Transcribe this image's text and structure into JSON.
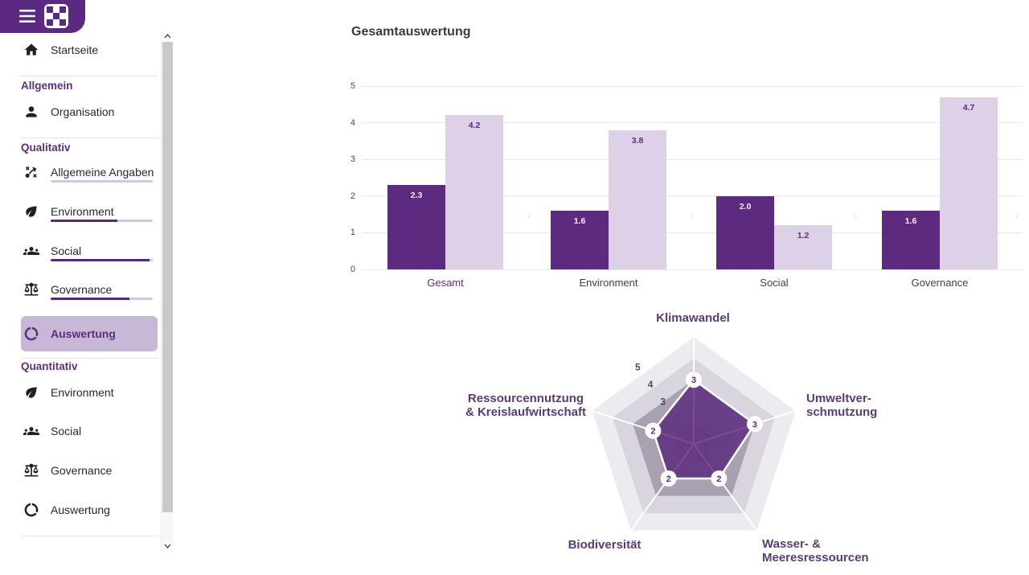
{
  "header": {
    "brand_color": "#5b2a80",
    "menu_icon": "hamburger-icon",
    "logo_icon": "checkerboard-logo"
  },
  "main": {
    "title": "Gesamtauswertung"
  },
  "sidebar": {
    "entries": [
      {
        "type": "item",
        "label": "Startseite",
        "icon": "home-icon"
      },
      {
        "type": "divider"
      },
      {
        "type": "section",
        "label": "Allgemein"
      },
      {
        "type": "item",
        "label": "Organisation",
        "icon": "person-icon"
      },
      {
        "type": "divider"
      },
      {
        "type": "section",
        "label": "Qualitativ"
      },
      {
        "type": "item",
        "label": "Allgemeine Angaben",
        "icon": "strategy-icon",
        "progress_percent": 0
      },
      {
        "type": "item",
        "label": "Environment",
        "icon": "leaf-icon",
        "progress_percent": 65
      },
      {
        "type": "item",
        "label": "Social",
        "icon": "people-icon",
        "progress_percent": 97
      },
      {
        "type": "item",
        "label": "Governance",
        "icon": "scales-icon",
        "progress_percent": 77
      },
      {
        "type": "item",
        "label": "Auswertung",
        "icon": "donut-icon",
        "active": true
      },
      {
        "type": "divider"
      },
      {
        "type": "section",
        "label": "Quantitativ"
      },
      {
        "type": "item",
        "label": "Environment",
        "icon": "leaf-icon"
      },
      {
        "type": "item",
        "label": "Social",
        "icon": "people-icon"
      },
      {
        "type": "item",
        "label": "Governance",
        "icon": "scales-icon"
      },
      {
        "type": "item",
        "label": "Auswertung",
        "icon": "donut-icon"
      },
      {
        "type": "divider"
      }
    ]
  },
  "colors": {
    "accent_purple": "#5c2d7e",
    "dark_bar": "#5c2b80",
    "light_bar": "#dcd1e6",
    "active_item_bg": "#c7b8d5",
    "radar_fill": "#5e2e80",
    "radar_label": "#5a3b78"
  },
  "chart_data": [
    {
      "type": "bar",
      "title": "Gesamtauswertung",
      "categories": [
        "Gesamt",
        "Environment",
        "Social",
        "Governance"
      ],
      "highlighted_category": "Gesamt",
      "series": [
        {
          "color": "#5c2b80",
          "values": [
            2.3,
            1.6,
            2.0,
            1.6
          ],
          "labels": [
            "2.3",
            "1.6",
            "2.0",
            "1.6"
          ]
        },
        {
          "color": "#dcd1e6",
          "values": [
            4.2,
            3.8,
            1.2,
            4.7
          ],
          "labels": [
            "4.2",
            "3.8",
            "1.2",
            "4.7"
          ]
        }
      ],
      "ylim": [
        0,
        5
      ],
      "yticks": [
        "0",
        "1",
        "2",
        "3",
        "4",
        "5"
      ],
      "grid": true,
      "legend": "none"
    },
    {
      "type": "radar",
      "categories": [
        "Klimawandel",
        "Umweltverschmutzung",
        "Wasser- & Meeresressourcen",
        "Biodiversität",
        "Ressourcennutzung & Kreislaufwirtschaft"
      ],
      "category_label_lines": [
        [
          "Klimawandel"
        ],
        [
          "Umweltver-",
          "schmutzung"
        ],
        [
          "Wasser- &",
          "Meeresressourcen"
        ],
        [
          "Biodiversität"
        ],
        [
          "Ressourcennutzung",
          "& Kreislaufwirtschaft"
        ]
      ],
      "values": [
        3,
        3,
        2,
        2,
        2
      ],
      "rlim": [
        0,
        5
      ],
      "scale_labels": [
        "5",
        "4",
        "3"
      ]
    }
  ]
}
